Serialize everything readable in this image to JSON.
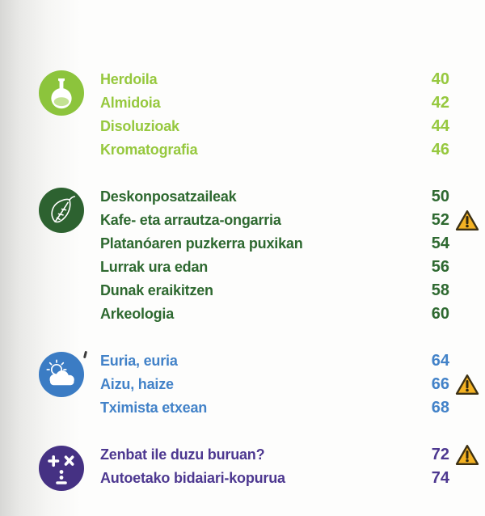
{
  "page": {
    "background": "#fdfdfc"
  },
  "colors": {
    "warning_fill": "#f4b223",
    "warning_border": "#3d3114",
    "warning_mark": "#33290f",
    "flask_liquid": "#c3e293"
  },
  "sections": [
    {
      "id": "chemistry",
      "icon": "flask-icon",
      "text_color": "#96c83e",
      "icon_color": "#8cc43c",
      "items": [
        {
          "label": "Herdoila",
          "page": "40",
          "warning": false
        },
        {
          "label": "Almidoia",
          "page": "42",
          "warning": false
        },
        {
          "label": "Disoluzioak",
          "page": "44",
          "warning": false
        },
        {
          "label": "Kromatografia",
          "page": "46",
          "warning": false
        }
      ]
    },
    {
      "id": "nature",
      "icon": "leaf-icon",
      "text_color": "#2e6930",
      "icon_color": "#2d6230",
      "items": [
        {
          "label": "Deskonposatzaileak",
          "page": "50",
          "warning": false
        },
        {
          "label": "Kafe- eta arrautza-ongarria",
          "page": "52",
          "warning": true
        },
        {
          "label": "Platanóaren puzkerra puxikan",
          "page": "54",
          "warning": false
        },
        {
          "label": "Lurrak ura edan",
          "page": "56",
          "warning": false
        },
        {
          "label": "Dunak eraikitzen",
          "page": "58",
          "warning": false
        },
        {
          "label": "Arkeologia",
          "page": "60",
          "warning": false
        }
      ]
    },
    {
      "id": "weather",
      "icon": "sun-cloud-icon",
      "text_color": "#4282c8",
      "icon_color": "#3b7cc4",
      "items": [
        {
          "label": "Euria, euria",
          "page": "64",
          "warning": false
        },
        {
          "label": "Aizu, haize",
          "page": "66",
          "warning": true
        },
        {
          "label": "Tximista etxean",
          "page": "68",
          "warning": false
        }
      ]
    },
    {
      "id": "math",
      "icon": "math-icon",
      "text_color": "#4d3890",
      "icon_color": "#453183",
      "items": [
        {
          "label": "Zenbat ile duzu buruan?",
          "page": "72",
          "warning": true
        },
        {
          "label": "Autoetako bidaiari-kopurua",
          "page": "74",
          "warning": false
        }
      ]
    }
  ]
}
